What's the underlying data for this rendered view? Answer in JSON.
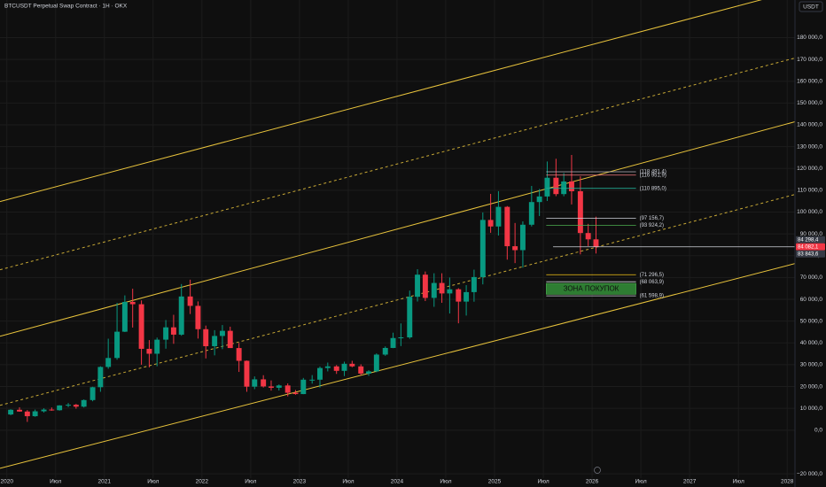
{
  "chart_data": {
    "type": "candlestick",
    "title": "BTCUSDT Perpetual Swap Contract · 1Н · OKX",
    "currency": "USDT",
    "x": [
      2020.04,
      2020.13,
      2020.21,
      2020.29,
      2020.38,
      2020.46,
      2020.54,
      2020.63,
      2020.71,
      2020.79,
      2020.88,
      2020.96,
      2021.04,
      2021.13,
      2021.21,
      2021.29,
      2021.38,
      2021.46,
      2021.54,
      2021.63,
      2021.71,
      2021.79,
      2021.88,
      2021.96,
      2022.04,
      2022.13,
      2022.21,
      2022.29,
      2022.38,
      2022.46,
      2022.54,
      2022.63,
      2022.71,
      2022.79,
      2022.88,
      2022.96,
      2023.04,
      2023.13,
      2023.21,
      2023.29,
      2023.38,
      2023.46,
      2023.54,
      2023.63,
      2023.71,
      2023.79,
      2023.88,
      2023.96,
      2024.04,
      2024.13,
      2024.21,
      2024.29,
      2024.38,
      2024.46,
      2024.54,
      2024.63,
      2024.71,
      2024.79,
      2024.88,
      2024.96,
      2025.04,
      2025.13,
      2025.21,
      2025.29,
      2025.38,
      2025.46,
      2025.54,
      2025.63,
      2025.71,
      2025.79,
      2025.88,
      2025.96,
      2026.04
    ],
    "open": [
      7200,
      9350,
      8550,
      6400,
      8650,
      9450,
      9150,
      11350,
      11650,
      10780,
      13800,
      19700,
      28990,
      33100,
      45150,
      58800,
      57750,
      37300,
      35050,
      41500,
      47150,
      43800,
      61300,
      57000,
      46300,
      38500,
      43200,
      45550,
      37650,
      31800,
      19950,
      23300,
      20050,
      19450,
      20500,
      17150,
      16550,
      23150,
      23150,
      28500,
      29250,
      27200,
      30450,
      29250,
      25950,
      26950,
      34650,
      37700,
      42250,
      42550,
      61150,
      71300,
      60650,
      67500,
      62700,
      64600,
      58950,
      63300,
      70200,
      96400,
      93400,
      102400,
      84350,
      82550,
      94200,
      104600,
      107150,
      115750,
      108250,
      114050,
      109550,
      90400,
      87500
    ],
    "high": [
      9600,
      10500,
      9200,
      9450,
      10050,
      10400,
      11450,
      12470,
      12050,
      14100,
      19900,
      29300,
      41950,
      58350,
      61800,
      64850,
      59500,
      41300,
      42450,
      50500,
      52900,
      67000,
      69000,
      59050,
      47950,
      45850,
      48200,
      47450,
      40000,
      31950,
      24650,
      25200,
      22800,
      20950,
      21450,
      18400,
      23950,
      25250,
      29200,
      31000,
      29850,
      31400,
      31800,
      30200,
      27500,
      35200,
      38400,
      44700,
      48950,
      64000,
      73800,
      72750,
      71950,
      71950,
      70000,
      65100,
      66500,
      73600,
      99800,
      108350,
      109600,
      102750,
      95000,
      95750,
      112000,
      110600,
      123200,
      124450,
      117900,
      126200,
      116400,
      94600,
      97900
    ],
    "low": [
      6850,
      8450,
      3800,
      6150,
      8100,
      8900,
      8950,
      10550,
      9850,
      10400,
      13250,
      17600,
      28150,
      32300,
      45000,
      47050,
      30000,
      28800,
      29300,
      37350,
      39600,
      43300,
      53250,
      42000,
      32900,
      34300,
      37150,
      37700,
      26700,
      17600,
      18800,
      19550,
      18150,
      18200,
      15500,
      16250,
      16500,
      21350,
      19550,
      26950,
      25800,
      24800,
      28850,
      25150,
      24900,
      26550,
      34100,
      37600,
      38550,
      41900,
      59000,
      59200,
      56550,
      58400,
      53500,
      49000,
      52550,
      58900,
      66850,
      90500,
      89250,
      78200,
      76600,
      74500,
      93400,
      98200,
      105100,
      107300,
      107250,
      103500,
      80600,
      84400,
      81000
    ],
    "close": [
      9350,
      8550,
      6400,
      8650,
      9450,
      9150,
      11350,
      11650,
      10780,
      13800,
      19700,
      28990,
      33100,
      45150,
      58800,
      57750,
      37300,
      35050,
      41500,
      47150,
      43800,
      61300,
      57000,
      46300,
      38500,
      43200,
      45550,
      37650,
      31800,
      19950,
      23300,
      20050,
      19450,
      20500,
      17150,
      16550,
      23150,
      23150,
      28500,
      29250,
      27200,
      30450,
      29250,
      25950,
      26950,
      34650,
      37700,
      42250,
      42550,
      61150,
      71300,
      60650,
      67500,
      62700,
      64600,
      58950,
      63300,
      70200,
      96400,
      93400,
      102400,
      84350,
      82550,
      94200,
      104600,
      107150,
      115750,
      108250,
      114050,
      109550,
      90400,
      87500,
      84082.1
    ],
    "up_color": "#089981",
    "down_color": "#f23645",
    "xlim": [
      2019.93,
      2028.08
    ],
    "xticks": [
      {
        "value": 2020,
        "label": "2020"
      },
      {
        "value": 2020.5,
        "label": "Июл"
      },
      {
        "value": 2021,
        "label": "2021"
      },
      {
        "value": 2021.5,
        "label": "Июл"
      },
      {
        "value": 2022,
        "label": "2022"
      },
      {
        "value": 2022.5,
        "label": "Июл"
      },
      {
        "value": 2023,
        "label": "2023"
      },
      {
        "value": 2023.5,
        "label": "Июл"
      },
      {
        "value": 2024,
        "label": "2024"
      },
      {
        "value": 2024.5,
        "label": "Июл"
      },
      {
        "value": 2025,
        "label": "2025"
      },
      {
        "value": 2025.5,
        "label": "Июл"
      },
      {
        "value": 2026,
        "label": "2026"
      },
      {
        "value": 2026.5,
        "label": "Июл"
      },
      {
        "value": 2027,
        "label": "2027"
      },
      {
        "value": 2027.5,
        "label": "Июл"
      },
      {
        "value": 2028,
        "label": "2028"
      }
    ],
    "ylim": [
      -22000,
      194000
    ],
    "yticks": [
      {
        "value": -20000,
        "label": "−20 000,0"
      },
      {
        "value": 0,
        "label": "0,0"
      },
      {
        "value": 10000,
        "label": "10 000,0"
      },
      {
        "value": 20000,
        "label": "20 000,0"
      },
      {
        "value": 30000,
        "label": "30 000,0"
      },
      {
        "value": 40000,
        "label": "40 000,0"
      },
      {
        "value": 50000,
        "label": "50 000,0"
      },
      {
        "value": 60000,
        "label": "60 000,0"
      },
      {
        "value": 70000,
        "label": "70 000,0"
      },
      {
        "value": 80000,
        "label": "80 000,0"
      },
      {
        "value": 90000,
        "label": "90 000,0"
      },
      {
        "value": 100000,
        "label": "100 000,0"
      },
      {
        "value": 110000,
        "label": "110 000,0"
      },
      {
        "value": 120000,
        "label": "120 000,0"
      },
      {
        "value": 130000,
        "label": "130 000,0"
      },
      {
        "value": 140000,
        "label": "140 000,0"
      },
      {
        "value": 150000,
        "label": "150 000,0"
      },
      {
        "value": 160000,
        "label": "160 000,0"
      },
      {
        "value": 170000,
        "label": "170 000,0"
      },
      {
        "value": 180000,
        "label": "180 000,0"
      }
    ],
    "grid": true,
    "channel": [
      {
        "x": [
          2019.93,
          2028.08
        ],
        "y": [
          104840,
          201460
        ],
        "dashed": false
      },
      {
        "x": [
          2019.93,
          2028.08
        ],
        "y": [
          73550,
          170660
        ],
        "dashed": true
      },
      {
        "x": [
          2019.93,
          2028.08
        ],
        "y": [
          43070,
          141410
        ],
        "dashed": false
      },
      {
        "x": [
          2019.93,
          2028.08
        ],
        "y": [
          11380,
          108090
        ],
        "dashed": true
      },
      {
        "x": [
          2019.93,
          2028.08
        ],
        "y": [
          -17470,
          76390
        ],
        "dashed": false
      }
    ],
    "channel_color": "#e8c33c",
    "levels": [
      {
        "value": 118491.4,
        "label": "(118 491,4)",
        "color": "#b2b5be"
      },
      {
        "value": 116951.9,
        "label": "(116 951,9)",
        "color": "#f77c80"
      },
      {
        "value": 110895.0,
        "label": "(110 895,0)",
        "color": "#22ab94"
      },
      {
        "value": 97156.7,
        "label": "(97 156,7)",
        "color": "#d1d4dc"
      },
      {
        "value": 93924.2,
        "label": "(93 924,2)",
        "color": "#4caf50"
      },
      {
        "value": 71296.5,
        "label": "(71 296,5)",
        "color": "#f5c518"
      },
      {
        "value": 68063.9,
        "label": "(68 063,9)",
        "color": "#d1d4dc"
      },
      {
        "value": 61598.9,
        "label": "(61 598,9)",
        "color": "#d1d4dc"
      }
    ],
    "levels_x": [
      2025.53,
      2026.45
    ],
    "zone": {
      "label": "ЗОНА ПОКУПОК",
      "range": [
        67300,
        62300
      ],
      "color": "#2e7d32"
    },
    "price_tags": [
      {
        "value": 84298.4,
        "label": "84 298,4",
        "color": "#363a45"
      },
      {
        "value": 84082.1,
        "label": "84 082,1",
        "color": "#f23645"
      },
      {
        "value": 83843.6,
        "label": "83 843,6",
        "color": "#363a45"
      }
    ]
  }
}
